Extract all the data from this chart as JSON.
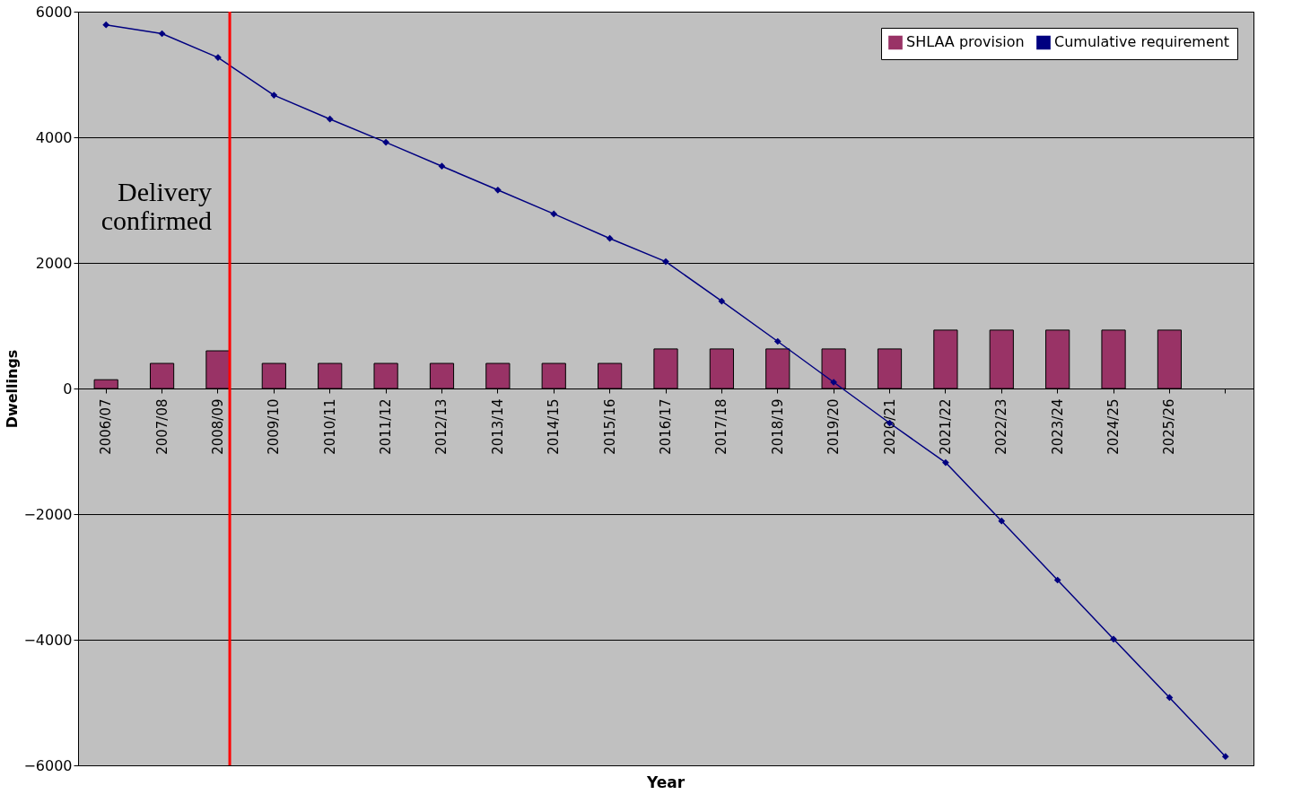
{
  "chart_data": {
    "type": "bar",
    "xlabel": "Year",
    "ylabel": "Dwellings",
    "categories": [
      "2006/07",
      "2007/08",
      "2008/09",
      "2009/10",
      "2010/11",
      "2011/12",
      "2012/13",
      "2013/14",
      "2014/15",
      "2015/16",
      "2016/17",
      "2017/18",
      "2018/19",
      "2019/20",
      "2020/21",
      "2021/22",
      "2022/23",
      "2023/24",
      "2024/25",
      "2025/26",
      null
    ],
    "series": [
      {
        "name": "SHLAA provision",
        "color": "#993366",
        "values": [
          140,
          400,
          600,
          400,
          400,
          400,
          400,
          400,
          400,
          400,
          630,
          630,
          630,
          630,
          630,
          930,
          930,
          930,
          930,
          930,
          null
        ]
      },
      {
        "name": "Cumulative requirement",
        "type": "line",
        "color": "#000080",
        "marker": "diamond",
        "values": [
          5790,
          5650,
          5270,
          4670,
          4290,
          3920,
          3540,
          3160,
          2780,
          2390,
          2020,
          1390,
          750,
          100,
          -550,
          -1180,
          -2110,
          -3050,
          -3990,
          -4920,
          -5860
        ]
      }
    ],
    "ylim": [
      -6000,
      6000
    ],
    "yticks": [
      -6000,
      -4000,
      -2000,
      0,
      2000,
      4000,
      6000
    ],
    "grid": "y",
    "legend": "top right",
    "ref_lines": [
      {
        "axis": "x",
        "value": "2008/09",
        "label": "Delivery confirmed",
        "color": "#ff0000"
      }
    ]
  }
}
